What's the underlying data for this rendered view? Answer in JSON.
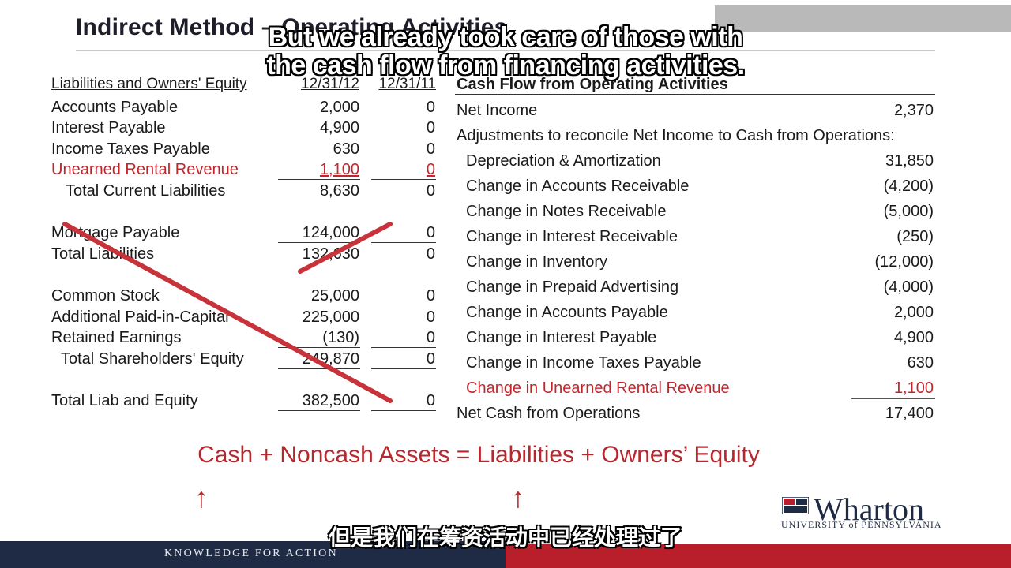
{
  "slide": {
    "title": "Indirect Method – Operating Activities",
    "footer": "KNOWLEDGE FOR ACTION",
    "logo": {
      "name": "Wharton",
      "sub": "UNIVERSITY of PENNSYLVANIA"
    }
  },
  "subtitles": {
    "en_line1": "But we already took care of those with",
    "en_line2": "the cash flow from financing activities.",
    "zh": "但是我们在筹资活动中已经处理过了"
  },
  "balance": {
    "header": {
      "label": "Liabilities and Owners' Equity",
      "col1": "12/31/12",
      "col2": "12/31/11"
    },
    "rows": [
      {
        "label": "Accounts Payable",
        "v1": "2,000",
        "v2": "0"
      },
      {
        "label": "Interest Payable",
        "v1": "4,900",
        "v2": "0"
      },
      {
        "label": "Income Taxes Payable",
        "v1": "630",
        "v2": "0"
      },
      {
        "label": "Unearned Rental Revenue",
        "v1": "1,100",
        "v2": "0"
      },
      {
        "label": "Total Current Liabilities",
        "v1": "8,630",
        "v2": "0"
      },
      {
        "label": "Mortgage Payable",
        "v1": "124,000",
        "v2": "0"
      },
      {
        "label": "Total Liabilities",
        "v1": "132,630",
        "v2": "0"
      },
      {
        "label": "Common Stock",
        "v1": "25,000",
        "v2": "0"
      },
      {
        "label": "Additional Paid-in-Capital",
        "v1": "225,000",
        "v2": "0"
      },
      {
        "label": "Retained Earnings",
        "v1": "(130)",
        "v2": "0"
      },
      {
        "label": "Total Shareholders' Equity",
        "v1": "249,870",
        "v2": "0"
      },
      {
        "label": "Total Liab and Equity",
        "v1": "382,500",
        "v2": "0"
      }
    ]
  },
  "cashflow": {
    "header": "Cash Flow from Operating Activities",
    "net_income": {
      "label": "Net Income",
      "value": "2,370"
    },
    "adjust_label": "Adjustments to reconcile Net Income to Cash from Operations:",
    "items": [
      {
        "label": "Depreciation & Amortization",
        "value": "31,850"
      },
      {
        "label": "Change in Accounts Receivable",
        "value": "(4,200)"
      },
      {
        "label": "Change in Notes Receivable",
        "value": "(5,000)"
      },
      {
        "label": "Change in Interest Receivable",
        "value": "(250)"
      },
      {
        "label": "Change in Inventory",
        "value": "(12,000)"
      },
      {
        "label": "Change in Prepaid Advertising",
        "value": "(4,000)"
      },
      {
        "label": "Change in Accounts Payable",
        "value": "2,000"
      },
      {
        "label": "Change in Interest Payable",
        "value": "4,900"
      },
      {
        "label": "Change in Income Taxes Payable",
        "value": "630"
      },
      {
        "label": "Change in Unearned Rental Revenue",
        "value": "1,100"
      }
    ],
    "total": {
      "label": "Net Cash from Operations",
      "value": "17,400"
    }
  },
  "equation": "Cash + Noncash Assets = Liabilities + Owners’ Equity",
  "arrows": [
    "↑",
    "↑"
  ],
  "colors": {
    "accent_red": "#c0272d",
    "navy": "#1f2a44",
    "footer_red": "#b81f2b"
  }
}
